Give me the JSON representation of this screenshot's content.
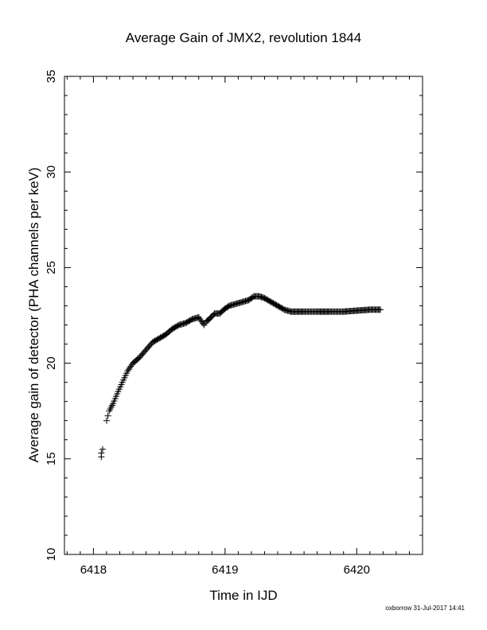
{
  "chart_data": {
    "type": "scatter",
    "title": "Average Gain of JMX2, revolution 1844",
    "xlabel": "Time in IJD",
    "ylabel": "Average gain of detector (PHA channels per keV)",
    "xlim": [
      6417.78,
      6420.5
    ],
    "ylim": [
      10,
      35
    ],
    "xticks": [
      6418,
      6419,
      6420
    ],
    "yticks": [
      10,
      15,
      20,
      25,
      30,
      35
    ],
    "xtick_labels": [
      "6418",
      "6419",
      "6420"
    ],
    "ytick_labels": [
      "10",
      "15",
      "20",
      "25",
      "30",
      "35"
    ],
    "grid": false,
    "marker": "+",
    "x": [
      6418.06,
      6418.06,
      6418.07,
      6418.1,
      6418.12,
      6418.15,
      6418.18,
      6418.22,
      6418.26,
      6418.3,
      6418.35,
      6418.4,
      6418.45,
      6418.5,
      6418.55,
      6418.6,
      6418.65,
      6418.7,
      6418.75,
      6418.8,
      6418.84,
      6418.86,
      6418.88,
      6418.92,
      6418.96,
      6418.99,
      6419.03,
      6419.08,
      6419.13,
      6419.18,
      6419.22,
      6419.26,
      6419.3,
      6419.35,
      6419.4,
      6419.45,
      6419.5,
      6419.6,
      6419.7,
      6419.8,
      6419.9,
      6420.0,
      6420.1,
      6420.18
    ],
    "y": [
      15.1,
      15.3,
      15.5,
      17.0,
      17.5,
      17.9,
      18.4,
      19.0,
      19.6,
      20.0,
      20.3,
      20.7,
      21.1,
      21.3,
      21.5,
      21.8,
      22.0,
      22.1,
      22.3,
      22.4,
      22.0,
      22.2,
      22.3,
      22.6,
      22.6,
      22.8,
      23.0,
      23.1,
      23.2,
      23.3,
      23.5,
      23.5,
      23.4,
      23.2,
      23.0,
      22.8,
      22.7,
      22.7,
      22.7,
      22.7,
      22.7,
      22.75,
      22.8,
      22.8
    ]
  },
  "footer": {
    "credit": "oxborrow 31-Jul-2017 14:41"
  }
}
